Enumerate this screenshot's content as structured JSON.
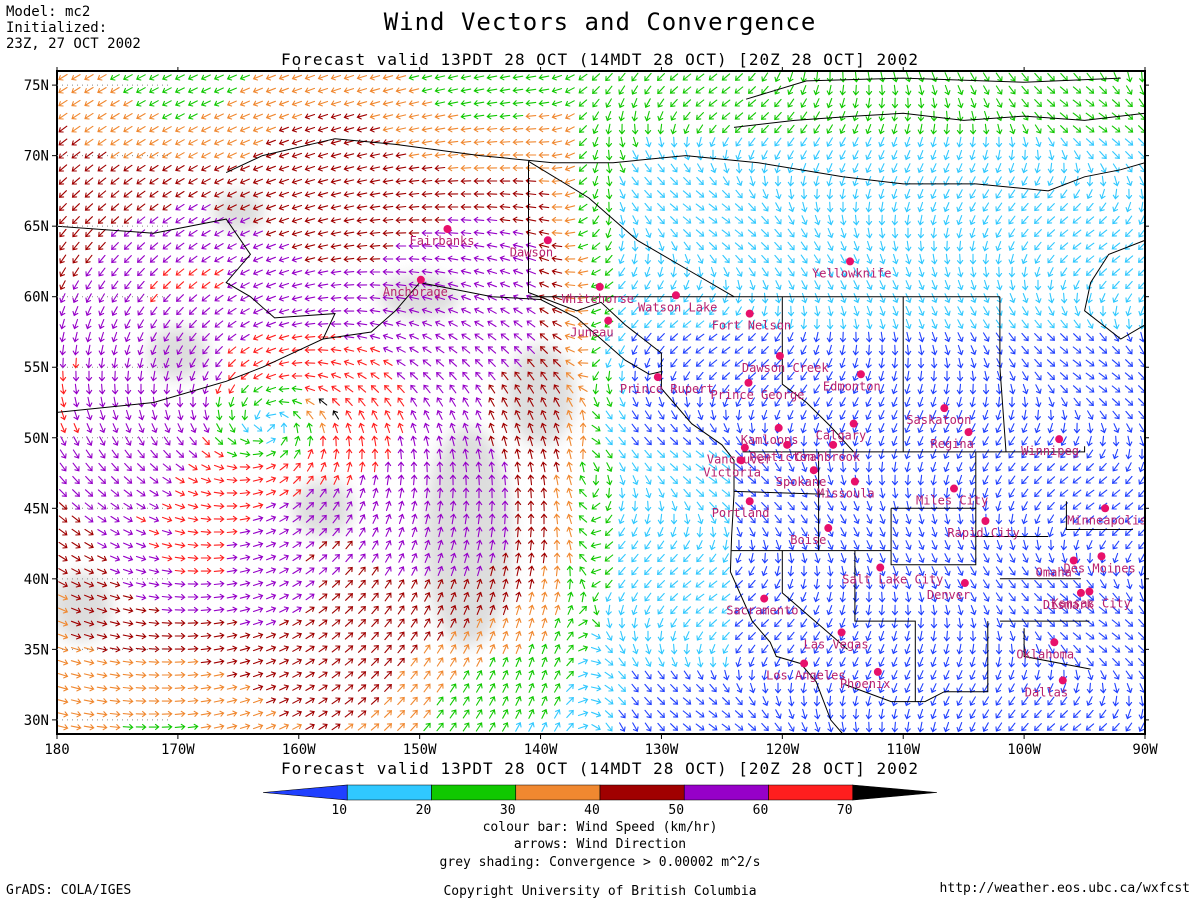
{
  "model_info": {
    "model": "Model: mc2",
    "initialized_label": "Initialized:",
    "initialized_time": "23Z, 27 OCT 2002"
  },
  "title": "Wind Vectors and Convergence",
  "forecast_valid": "Forecast valid 13PDT 28 OCT (14MDT 28 OCT) [20Z 28 OCT] 2002",
  "map": {
    "lon_range": [
      -180,
      -90
    ],
    "lat_range": [
      29,
      76
    ],
    "lat_ticks": [
      {
        "value": 75,
        "label": "75N"
      },
      {
        "value": 70,
        "label": "70N"
      },
      {
        "value": 65,
        "label": "65N"
      },
      {
        "value": 60,
        "label": "60N"
      },
      {
        "value": 55,
        "label": "55N"
      },
      {
        "value": 50,
        "label": "50N"
      },
      {
        "value": 45,
        "label": "45N"
      },
      {
        "value": 40,
        "label": "40N"
      },
      {
        "value": 35,
        "label": "35N"
      },
      {
        "value": 30,
        "label": "30N"
      }
    ],
    "lon_ticks": [
      {
        "value": -180,
        "label": "180"
      },
      {
        "value": -170,
        "label": "170W"
      },
      {
        "value": -160,
        "label": "160W"
      },
      {
        "value": -150,
        "label": "150W"
      },
      {
        "value": -140,
        "label": "140W"
      },
      {
        "value": -130,
        "label": "130W"
      },
      {
        "value": -120,
        "label": "120W"
      },
      {
        "value": -110,
        "label": "110W"
      },
      {
        "value": -100,
        "label": "100W"
      },
      {
        "value": -90,
        "label": "90W"
      }
    ],
    "low_center": {
      "lon": -162.5,
      "lat": 51
    },
    "cities": [
      {
        "name": "Fairbanks",
        "lon": -147.7,
        "lat": 64.8
      },
      {
        "name": "Dawson",
        "lon": -139.4,
        "lat": 64.0
      },
      {
        "name": "Anchorage",
        "lon": -149.9,
        "lat": 61.2
      },
      {
        "name": "Whitehorse",
        "lon": -135.1,
        "lat": 60.7
      },
      {
        "name": "Watson Lake",
        "lon": -128.8,
        "lat": 60.1
      },
      {
        "name": "Yellowknife",
        "lon": -114.4,
        "lat": 62.5
      },
      {
        "name": "Juneau",
        "lon": -134.4,
        "lat": 58.3
      },
      {
        "name": "Fort Nelson",
        "lon": -122.7,
        "lat": 58.8
      },
      {
        "name": "Dawson Creek",
        "lon": -120.2,
        "lat": 55.8
      },
      {
        "name": "Edmonton",
        "lon": -113.5,
        "lat": 54.5
      },
      {
        "name": "Prince George",
        "lon": -122.8,
        "lat": 53.9
      },
      {
        "name": "Prince Rupert",
        "lon": -130.3,
        "lat": 54.3
      },
      {
        "name": "Saskatoon",
        "lon": -106.6,
        "lat": 52.1
      },
      {
        "name": "Kamloops",
        "lon": -120.3,
        "lat": 50.7
      },
      {
        "name": "Calgary",
        "lon": -114.1,
        "lat": 51.0
      },
      {
        "name": "Cranbrook",
        "lon": -115.8,
        "lat": 49.5
      },
      {
        "name": "Regina",
        "lon": -104.6,
        "lat": 50.4
      },
      {
        "name": "Winnipeg",
        "lon": -97.1,
        "lat": 49.9
      },
      {
        "name": "Vancouver",
        "lon": -123.1,
        "lat": 49.3
      },
      {
        "name": "Penticton",
        "lon": -119.6,
        "lat": 49.5
      },
      {
        "name": "Victoria",
        "lon": -123.4,
        "lat": 48.4
      },
      {
        "name": "Spokane",
        "lon": -117.4,
        "lat": 47.7
      },
      {
        "name": "Missoula",
        "lon": -114.0,
        "lat": 46.9
      },
      {
        "name": "Portland",
        "lon": -122.7,
        "lat": 45.5
      },
      {
        "name": "Boise",
        "lon": -116.2,
        "lat": 43.6
      },
      {
        "name": "Miles City",
        "lon": -105.8,
        "lat": 46.4
      },
      {
        "name": "Rapid City",
        "lon": -103.2,
        "lat": 44.1
      },
      {
        "name": "Minneapolis",
        "lon": -93.3,
        "lat": 45.0
      },
      {
        "name": "Des Moines",
        "lon": -93.6,
        "lat": 41.6
      },
      {
        "name": "Omaha",
        "lon": -95.9,
        "lat": 41.3
      },
      {
        "name": "Salt Lake City",
        "lon": -111.9,
        "lat": 40.8
      },
      {
        "name": "Denver",
        "lon": -104.9,
        "lat": 39.7
      },
      {
        "name": "Kansas City",
        "lon": -94.6,
        "lat": 39.1
      },
      {
        "name": "Dismark",
        "lon": -95.3,
        "lat": 39.0
      },
      {
        "name": "Sacramento",
        "lon": -121.5,
        "lat": 38.6
      },
      {
        "name": "Las Vegas",
        "lon": -115.1,
        "lat": 36.2
      },
      {
        "name": "Oklahoma",
        "lon": -97.5,
        "lat": 35.5
      },
      {
        "name": "Phoenix",
        "lon": -112.1,
        "lat": 33.4
      },
      {
        "name": "Los Angeles",
        "lon": -118.2,
        "lat": 34.0
      },
      {
        "name": "Dallas",
        "lon": -96.8,
        "lat": 32.8
      }
    ]
  },
  "colorbar": {
    "ticks": [
      "10",
      "20",
      "30",
      "40",
      "50",
      "60",
      "70"
    ],
    "colors": [
      "#2040ff",
      "#30c8ff",
      "#10c800",
      "#f08830",
      "#a00000",
      "#9600c8",
      "#ff1e1e",
      "#000000"
    ]
  },
  "notes": {
    "colour_bar": "colour bar: Wind Speed (km/hr)",
    "arrows": "arrows: Wind Direction",
    "grey": "grey shading: Convergence > 0.00002 m^2/s"
  },
  "footer": {
    "left": "GrADS: COLA/IGES",
    "center": "Copyright University of British Columbia",
    "right": "http://weather.eos.ubc.ca/wxfcst"
  }
}
